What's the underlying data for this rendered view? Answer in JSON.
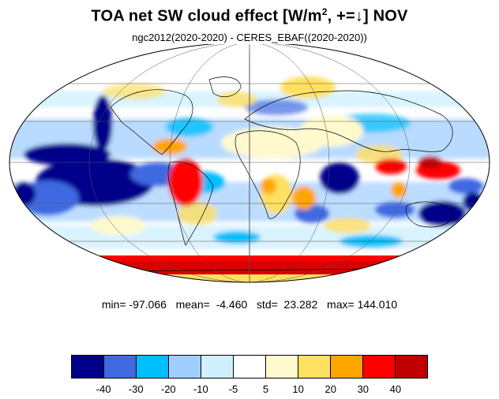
{
  "title": {
    "main": "TOA net SW cloud effect [W/m",
    "sup": "2",
    "rest": ", +=↓]  NOV"
  },
  "subtitle": "ngc2012(2020-2020) - CERES_EBAF((2020-2020))",
  "stats": {
    "text": "min= -97.066   mean=  -4.460   std=  23.282   max= 144.010",
    "min": -97.066,
    "mean": -4.46,
    "std": 23.282,
    "max": 144.01
  },
  "colorbar": {
    "colors": [
      "#00008b",
      "#4169e1",
      "#00bfff",
      "#a0cfff",
      "#d0f0ff",
      "#ffffff",
      "#fffacd",
      "#ffe060",
      "#ffa500",
      "#ff0000",
      "#c00000"
    ],
    "labels": [
      "-40",
      "-30",
      "-20",
      "-10",
      "-5",
      "5",
      "10",
      "20",
      "30",
      "40"
    ]
  },
  "map": {
    "projection": "mollweide",
    "graticule": true,
    "ocean_background": "#ffffff"
  }
}
